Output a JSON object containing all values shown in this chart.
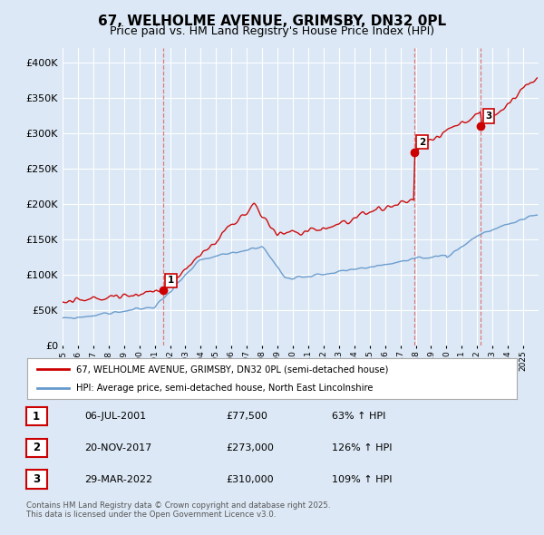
{
  "title": "67, WELHOLME AVENUE, GRIMSBY, DN32 0PL",
  "subtitle": "Price paid vs. HM Land Registry's House Price Index (HPI)",
  "title_fontsize": 11,
  "subtitle_fontsize": 9,
  "background_color": "#dce8f5",
  "plot_bg_color": "#dce8f5",
  "red_color": "#cc0000",
  "blue_color": "#6699cc",
  "dashed_color": "#dd6666",
  "legend_bg": "#ffffff",
  "ylim": [
    0,
    420000
  ],
  "yticks": [
    0,
    50000,
    100000,
    150000,
    200000,
    250000,
    300000,
    350000,
    400000
  ],
  "ytick_labels": [
    "£0",
    "£50K",
    "£100K",
    "£150K",
    "£200K",
    "£250K",
    "£300K",
    "£350K",
    "£400K"
  ],
  "sale_dates": [
    2001.54,
    2017.89,
    2022.24
  ],
  "sale_prices": [
    77500,
    273000,
    310000
  ],
  "sale_labels": [
    "1",
    "2",
    "3"
  ],
  "legend_line1": "67, WELHOLME AVENUE, GRIMSBY, DN32 0PL (semi-detached house)",
  "legend_line2": "HPI: Average price, semi-detached house, North East Lincolnshire",
  "table_data": [
    [
      "1",
      "06-JUL-2001",
      "£77,500",
      "63% ↑ HPI"
    ],
    [
      "2",
      "20-NOV-2017",
      "£273,000",
      "126% ↑ HPI"
    ],
    [
      "3",
      "29-MAR-2022",
      "£310,000",
      "109% ↑ HPI"
    ]
  ],
  "footer": "Contains HM Land Registry data © Crown copyright and database right 2025.\nThis data is licensed under the Open Government Licence v3.0.",
  "xstart": 1995,
  "xend": 2026
}
